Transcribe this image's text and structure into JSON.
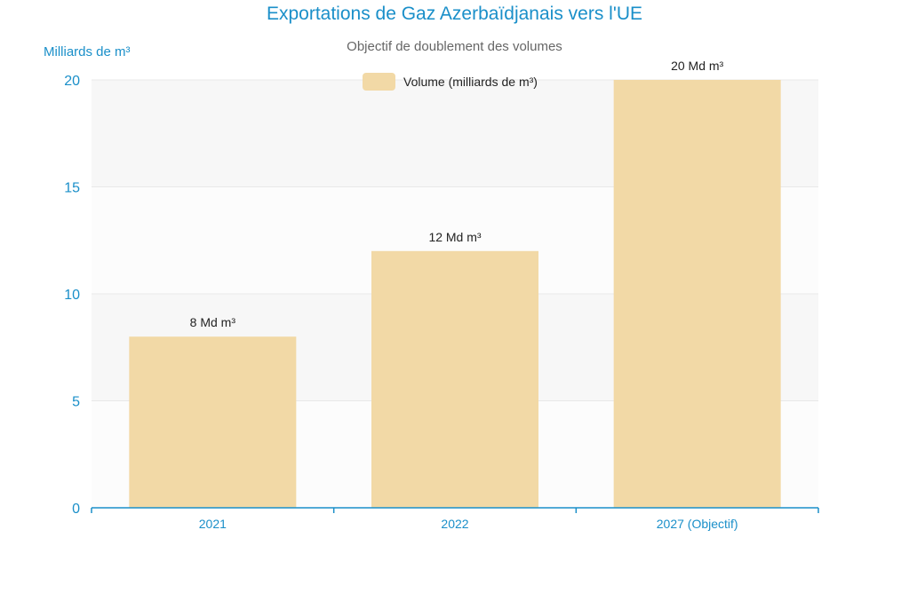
{
  "chart_data": {
    "type": "bar",
    "title": "Exportations de Gaz Azerbaïdjanais vers l'UE",
    "subtitle": "Objectif de doublement des volumes",
    "ylabel": "Milliards de m³",
    "xlabel": "",
    "categories": [
      "2021",
      "2022",
      "2027 (Objectif)"
    ],
    "series": [
      {
        "name": "Volume (milliards de m³)",
        "values": [
          8,
          12,
          20
        ],
        "data_labels": [
          "8 Md m³",
          "12 Md m³",
          "20 Md m³"
        ]
      }
    ],
    "ylim": [
      0,
      20
    ],
    "yticks": [
      0,
      5,
      10,
      15,
      20
    ],
    "grid": true,
    "legend_position": "top-center",
    "colors": {
      "bar": "#f2d9a6",
      "axis": "#1a8fc9",
      "band_shade": "#f7f7f7",
      "band_light": "#fcfcfc",
      "gridline": "#e8e8e8"
    }
  }
}
